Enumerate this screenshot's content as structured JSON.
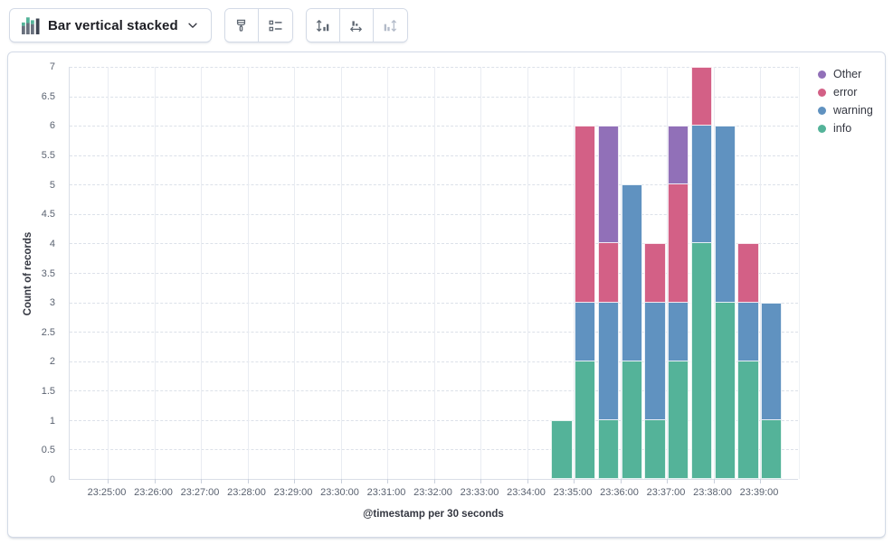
{
  "toolbar": {
    "chart_type": {
      "label": "Bar vertical stacked",
      "icon": "bar-vertical-stacked-icon"
    },
    "style_buttons": [
      {
        "name": "visual-options",
        "icon": "brush-icon",
        "disabled": false
      },
      {
        "name": "legend-settings",
        "icon": "legend-list-icon",
        "disabled": false
      }
    ],
    "axis_buttons": [
      {
        "name": "left-axis",
        "icon": "left-axis-icon",
        "disabled": false
      },
      {
        "name": "bottom-axis",
        "icon": "bottom-axis-icon",
        "disabled": false
      },
      {
        "name": "right-axis",
        "icon": "right-axis-icon",
        "disabled": true
      }
    ]
  },
  "colors": {
    "other": "#9170B8",
    "error": "#D36086",
    "warning": "#6092C0",
    "info": "#54B399",
    "panel_border": "#D3DAE6",
    "icon_gray": "#5D6671",
    "icon_disabled": "#B3BBC9",
    "grid_horizontal": "#DCE1E9",
    "grid_vertical": "#E9ECF2",
    "axis_line": "#D9DEE7",
    "tick_text": "#5A6270",
    "title_text": "#343741"
  },
  "chart_data": {
    "type": "bar",
    "stacked": true,
    "orientation": "vertical",
    "title": "",
    "xlabel": "@timestamp per 30 seconds",
    "ylabel": "Count of records",
    "ylim": [
      0,
      7
    ],
    "y_tick_step": 0.5,
    "grid": true,
    "legend_position": "top-right",
    "x_tick_labels": [
      "23:25:00",
      "23:26:00",
      "23:27:00",
      "23:28:00",
      "23:29:00",
      "23:30:00",
      "23:31:00",
      "23:32:00",
      "23:33:00",
      "23:34:00",
      "23:35:00",
      "23:36:00",
      "23:37:00",
      "23:38:00",
      "23:39:00"
    ],
    "x": [
      "23:34:30",
      "23:35:00",
      "23:35:30",
      "23:36:00",
      "23:36:30",
      "23:37:00",
      "23:37:30",
      "23:38:00",
      "23:38:30",
      "23:39:00"
    ],
    "series": [
      {
        "name": "Other",
        "color": "#9170B8",
        "values": [
          0,
          0,
          2,
          0,
          0,
          1,
          0,
          0,
          0,
          0
        ]
      },
      {
        "name": "error",
        "color": "#D36086",
        "values": [
          0,
          3,
          1,
          0,
          1,
          2,
          1,
          0,
          1,
          0
        ]
      },
      {
        "name": "warning",
        "color": "#6092C0",
        "values": [
          0,
          1,
          2,
          3,
          2,
          1,
          2,
          3,
          1,
          2
        ]
      },
      {
        "name": "info",
        "color": "#54B399",
        "values": [
          1,
          2,
          1,
          2,
          1,
          2,
          4,
          3,
          2,
          1
        ]
      }
    ],
    "totals": [
      1,
      6,
      6,
      5,
      4,
      6,
      7,
      6,
      4,
      3
    ]
  }
}
